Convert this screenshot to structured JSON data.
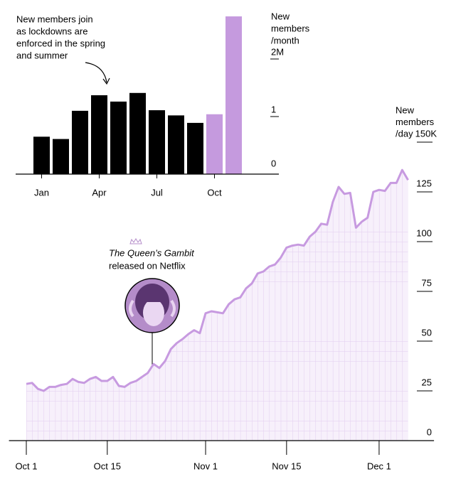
{
  "chart_data": [
    {
      "type": "bar",
      "annotation": [
        "New members join",
        "as lockdowns are",
        "enforced in the spring",
        "and summer"
      ],
      "ylabel": [
        "New",
        "members",
        "/month"
      ],
      "categories": [
        "Jan",
        null,
        null,
        "Apr",
        null,
        null,
        "Jul",
        null,
        null,
        "Oct",
        null
      ],
      "values": [
        0.65,
        0.61,
        1.1,
        1.37,
        1.26,
        1.41,
        1.11,
        1.02,
        0.89,
        1.04,
        2.74
      ],
      "colors": [
        "#000000",
        "#000000",
        "#000000",
        "#000000",
        "#000000",
        "#000000",
        "#000000",
        "#000000",
        "#000000",
        "#c59ade",
        "#c59ade"
      ],
      "ylim": [
        0,
        3
      ],
      "yticks": [
        0,
        1,
        {
          "value": 2,
          "label": "2M"
        }
      ]
    },
    {
      "type": "line",
      "annotation": [
        "The Queen’s Gambit",
        "released on Netflix"
      ],
      "ylabel": [
        "New",
        "members",
        "/day"
      ],
      "x": [
        0,
        1,
        2,
        3,
        4,
        5,
        6,
        7,
        8,
        9,
        10,
        11,
        12,
        13,
        14,
        15,
        16,
        17,
        18,
        19,
        20,
        21,
        22,
        23,
        24,
        25,
        26,
        27,
        28,
        29,
        30,
        31,
        32,
        33,
        34,
        35,
        36,
        37,
        38,
        39,
        40,
        41,
        42,
        43,
        44,
        45,
        46,
        47,
        48,
        49,
        50,
        51,
        52,
        53,
        54,
        55,
        56,
        57,
        58,
        59,
        60,
        61,
        62,
        63,
        64,
        65,
        66
      ],
      "values": [
        28.5,
        29,
        26,
        25,
        27,
        27,
        28,
        28.5,
        31,
        29.5,
        29,
        31,
        32,
        30,
        30,
        32,
        27.5,
        27,
        29,
        30,
        32,
        34,
        38.5,
        36.5,
        40,
        46,
        49,
        51,
        53.5,
        55.5,
        54,
        64,
        65,
        64.5,
        64,
        68.5,
        71,
        72,
        76.5,
        79,
        84,
        85,
        87.5,
        88.5,
        92,
        97,
        98,
        98.5,
        98,
        102.5,
        105,
        109,
        108.5,
        120,
        127.5,
        124,
        124.5,
        107,
        110,
        112,
        125,
        126,
        125.5,
        129.5,
        129.5,
        136,
        131
      ],
      "color": "#c79ae0",
      "xlim": [
        -3,
        70
      ],
      "xticks": [
        {
          "value": 0,
          "label": "Oct 1"
        },
        {
          "value": 14,
          "label": "Oct 15"
        },
        {
          "value": 31,
          "label": "Nov 1"
        },
        {
          "value": 45,
          "label": "Nov 15"
        },
        {
          "value": 61,
          "label": "Dec 1"
        }
      ],
      "ylim": [
        0,
        150
      ],
      "yticks": [
        0,
        25,
        50,
        75,
        100,
        125,
        {
          "value": 150,
          "label": "150K"
        }
      ]
    }
  ]
}
